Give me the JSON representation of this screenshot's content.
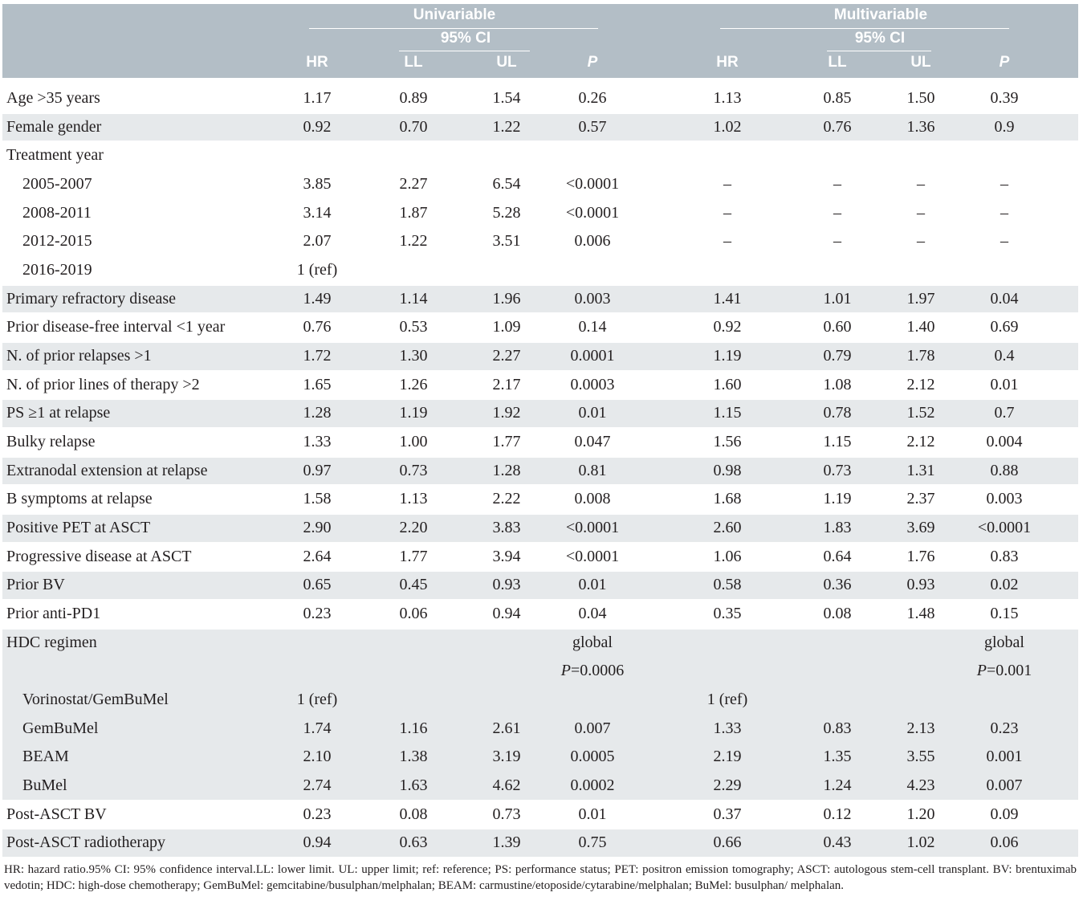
{
  "header": {
    "groups": [
      "Univariable",
      "Multivariable"
    ],
    "ci": [
      "95% CI",
      "95% CI"
    ],
    "columns": [
      "HR",
      "LL",
      "UL",
      "P",
      "HR",
      "LL",
      "UL",
      "P"
    ]
  },
  "table": {
    "groups": [
      {
        "label": "Age >35 years",
        "values": [
          "1.17",
          "0.89",
          "1.54",
          "0.26",
          "1.13",
          "0.85",
          "1.50",
          "0.39"
        ]
      },
      {
        "label": "Female gender",
        "values": [
          "0.92",
          "0.70",
          "1.22",
          "0.57",
          "1.02",
          "0.76",
          "1.36",
          "0.9"
        ]
      },
      {
        "label": "Treatment year",
        "rows": [
          {
            "label": "2005-2007",
            "values": [
              "3.85",
              "2.27",
              "6.54",
              "<0.0001",
              "–",
              "–",
              "–",
              "–"
            ]
          },
          {
            "label": "2008-2011",
            "values": [
              "3.14",
              "1.87",
              "5.28",
              "<0.0001",
              "–",
              "–",
              "–",
              "–"
            ]
          },
          {
            "label": "2012-2015",
            "values": [
              "2.07",
              "1.22",
              "3.51",
              "0.006",
              "–",
              "–",
              "–",
              "–"
            ]
          },
          {
            "label": "2016-2019",
            "values": [
              "1 (ref)",
              null,
              null,
              null,
              null,
              null,
              null,
              null
            ]
          }
        ]
      },
      {
        "label": "Primary refractory disease",
        "values": [
          "1.49",
          "1.14",
          "1.96",
          "0.003",
          "1.41",
          "1.01",
          "1.97",
          "0.04"
        ]
      },
      {
        "label": "Prior disease-free interval <1 year",
        "values": [
          "0.76",
          "0.53",
          "1.09",
          "0.14",
          "0.92",
          "0.60",
          "1.40",
          "0.69"
        ]
      },
      {
        "label": "N. of prior relapses >1",
        "values": [
          "1.72",
          "1.30",
          "2.27",
          "0.0001",
          "1.19",
          "0.79",
          "1.78",
          "0.4"
        ]
      },
      {
        "label": "N. of prior lines of therapy >2",
        "values": [
          "1.65",
          "1.26",
          "2.17",
          "0.0003",
          "1.60",
          "1.08",
          "2.12",
          "0.01"
        ]
      },
      {
        "label": "PS ≥1 at relapse",
        "values": [
          "1.28",
          "1.19",
          "1.92",
          "0.01",
          "1.15",
          "0.78",
          "1.52",
          "0.7"
        ]
      },
      {
        "label": "Bulky relapse",
        "values": [
          "1.33",
          "1.00",
          "1.77",
          "0.047",
          "1.56",
          "1.15",
          "2.12",
          "0.004"
        ]
      },
      {
        "label": "Extranodal extension at relapse",
        "values": [
          "0.97",
          "0.73",
          "1.28",
          "0.81",
          "0.98",
          "0.73",
          "1.31",
          "0.88"
        ]
      },
      {
        "label": "B symptoms at relapse",
        "values": [
          "1.58",
          "1.13",
          "2.22",
          "0.008",
          "1.68",
          "1.19",
          "2.37",
          "0.003"
        ]
      },
      {
        "label": "Positive PET at ASCT",
        "values": [
          "2.90",
          "2.20",
          "3.83",
          "<0.0001",
          "2.60",
          "1.83",
          "3.69",
          "<0.0001"
        ]
      },
      {
        "label": "Progressive disease at ASCT",
        "values": [
          "2.64",
          "1.77",
          "3.94",
          "<0.0001",
          "1.06",
          "0.64",
          "1.76",
          "0.83"
        ]
      },
      {
        "label": "Prior BV",
        "values": [
          "0.65",
          "0.45",
          "0.93",
          "0.01",
          "0.58",
          "0.36",
          "0.93",
          "0.02"
        ]
      },
      {
        "label": "Prior anti-PD1",
        "values": [
          "0.23",
          "0.06",
          "0.94",
          "0.04",
          "0.35",
          "0.08",
          "1.48",
          "0.15"
        ]
      },
      {
        "label": "HDC regimen",
        "values": [
          null,
          null,
          null,
          [
            "global",
            "P=0.0006"
          ],
          null,
          null,
          null,
          [
            "global",
            "P=0.001"
          ]
        ],
        "rows": [
          {
            "label": "Vorinostat/GemBuMel",
            "values": [
              "1 (ref)",
              null,
              null,
              null,
              "1 (ref)",
              null,
              null,
              null
            ]
          },
          {
            "label": "GemBuMel",
            "values": [
              "1.74",
              "1.16",
              "2.61",
              "0.007",
              "1.33",
              "0.83",
              "2.13",
              "0.23"
            ]
          },
          {
            "label": "BEAM",
            "values": [
              "2.10",
              "1.38",
              "3.19",
              "0.0005",
              "2.19",
              "1.35",
              "3.55",
              "0.001"
            ]
          },
          {
            "label": "BuMel",
            "values": [
              "2.74",
              "1.63",
              "4.62",
              "0.0002",
              "2.29",
              "1.24",
              "4.23",
              "0.007"
            ]
          }
        ]
      },
      {
        "label": "Post-ASCT BV",
        "values": [
          "0.23",
          "0.08",
          "0.73",
          "0.01",
          "0.37",
          "0.12",
          "1.20",
          "0.09"
        ]
      },
      {
        "label": "Post-ASCT radiotherapy",
        "values": [
          "0.94",
          "0.63",
          "1.39",
          "0.75",
          "0.66",
          "0.43",
          "1.02",
          "0.06"
        ]
      }
    ]
  },
  "footnote": "HR: hazard ratio.95% CI: 95% confidence interval.LL: lower limit. UL: upper limit; ref: reference; PS: performance status; PET: positron emission tomography; ASCT: autologous stem-cell transplant. BV: brentuximab vedotin; HDC: high-dose chemotherapy; GemBuMel: gemcitabine/busulphan/melphalan; BEAM: carmustine/etoposide/cytarabine/melphalan; BuMel: busulphan/ melphalan."
}
